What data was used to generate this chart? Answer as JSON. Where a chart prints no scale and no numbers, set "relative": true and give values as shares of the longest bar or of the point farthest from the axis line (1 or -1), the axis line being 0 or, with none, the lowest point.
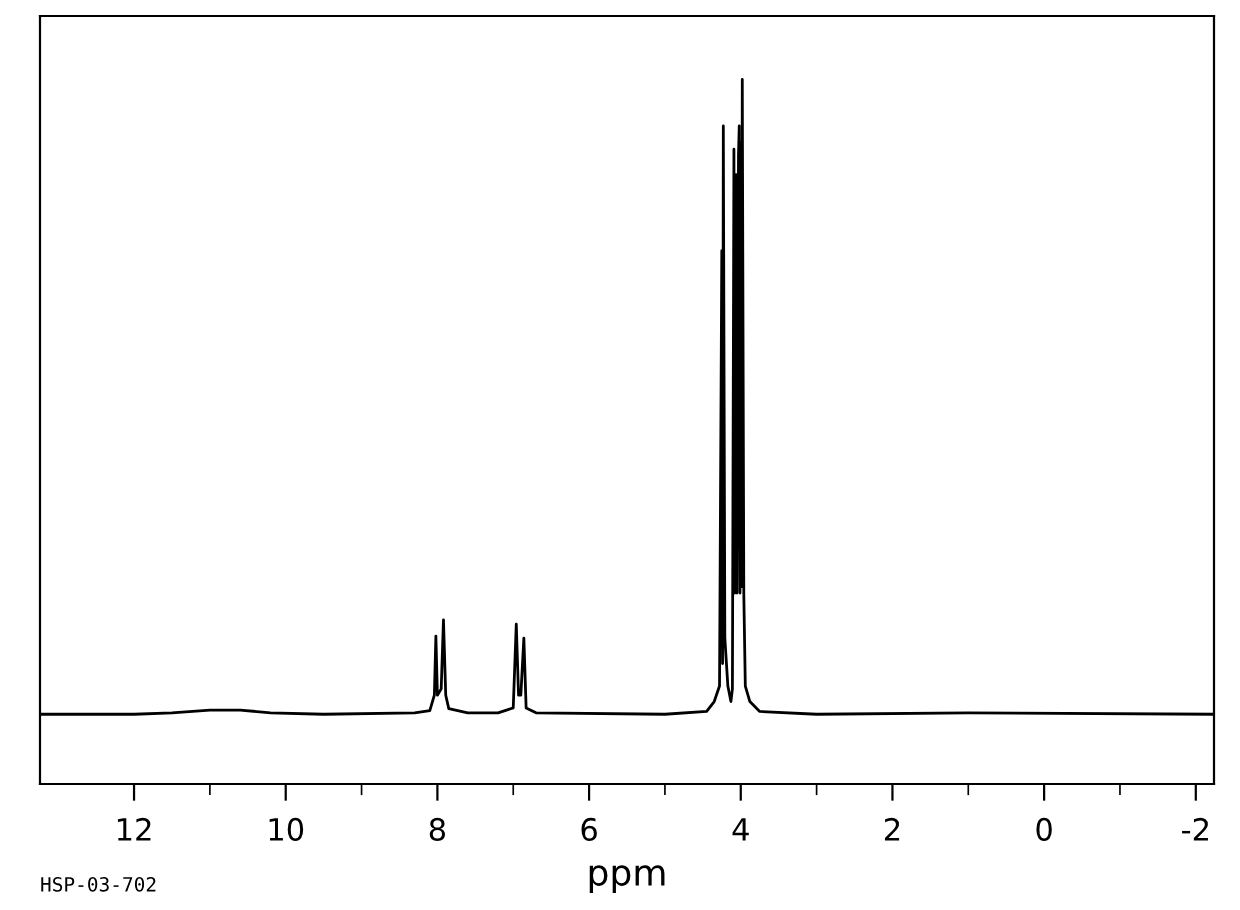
{
  "chart_data": {
    "type": "line",
    "relative": true,
    "xlabel": "ppm",
    "xlim": [
      13.24,
      -2.24
    ],
    "xticks": [
      12,
      {
        "value": 11,
        "label": null
      },
      10,
      {
        "value": 9,
        "label": null
      },
      8,
      {
        "value": 7,
        "label": null
      },
      6,
      {
        "value": 5,
        "label": null
      },
      4,
      {
        "value": 3,
        "label": null
      },
      2,
      {
        "value": 1,
        "label": null
      },
      0,
      {
        "value": -1,
        "label": null
      },
      -2
    ],
    "grid": false,
    "legend": false,
    "marker": "none",
    "line_style": "solid",
    "annotations": [
      "HSP-03-702"
    ],
    "series": [
      {
        "color": "#000000",
        "x": [
          13.24,
          12,
          11.5,
          11,
          10.6,
          10.2,
          9.5,
          8.3,
          8.1,
          8.04,
          8.02,
          8.0,
          7.95,
          7.92,
          7.89,
          7.85,
          7.6,
          7.2,
          7.0,
          6.96,
          6.93,
          6.9,
          6.86,
          6.83,
          6.7,
          5.0,
          4.45,
          4.35,
          4.28,
          4.25,
          4.24,
          4.23,
          4.21,
          4.17,
          4.13,
          4.11,
          4.09,
          4.08,
          4.06,
          4.05,
          4.03,
          4.02,
          4.01,
          4.0,
          3.99,
          3.98,
          3.96,
          3.94,
          3.88,
          3.75,
          3.0,
          1.0,
          -2.24
        ],
        "values": [
          0.099,
          0.099,
          0.101,
          0.105,
          0.105,
          0.101,
          0.099,
          0.101,
          0.104,
          0.126,
          0.21,
          0.126,
          0.135,
          0.233,
          0.126,
          0.107,
          0.101,
          0.101,
          0.108,
          0.227,
          0.126,
          0.126,
          0.207,
          0.108,
          0.101,
          0.099,
          0.103,
          0.117,
          0.139,
          0.757,
          0.171,
          0.934,
          0.207,
          0.139,
          0.117,
          0.135,
          0.901,
          0.271,
          0.865,
          0.271,
          0.892,
          0.934,
          0.271,
          0.91,
          0.28,
          1.0,
          0.271,
          0.139,
          0.117,
          0.103,
          0.099,
          0.101,
          0.099
        ]
      }
    ]
  }
}
